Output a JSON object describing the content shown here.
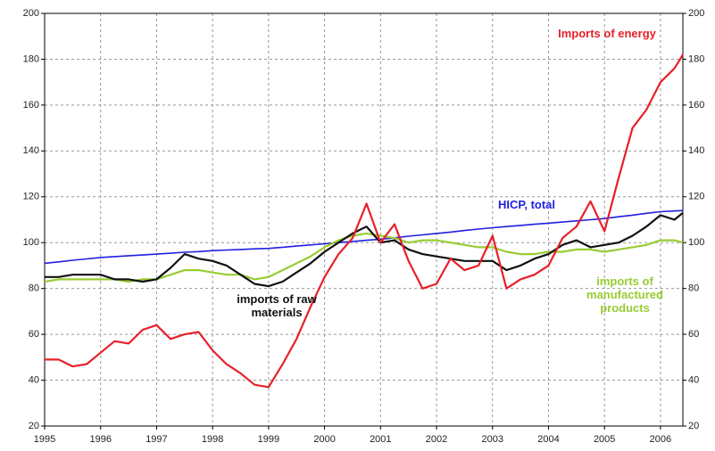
{
  "chart_data": {
    "type": "line",
    "x": [
      1995,
      1995.25,
      1995.5,
      1995.75,
      1996,
      1996.25,
      1996.5,
      1996.75,
      1997,
      1997.25,
      1997.5,
      1997.75,
      1998,
      1998.25,
      1998.5,
      1998.75,
      1999,
      1999.25,
      1999.5,
      1999.75,
      2000,
      2000.25,
      2000.5,
      2000.75,
      2001,
      2001.25,
      2001.5,
      2001.75,
      2002,
      2002.25,
      2002.5,
      2002.75,
      2003,
      2003.25,
      2003.5,
      2003.75,
      2004,
      2004.25,
      2004.5,
      2004.75,
      2005,
      2005.25,
      2005.5,
      2005.75,
      2006,
      2006.25,
      2006.4
    ],
    "series": [
      {
        "name": "Imports of energy",
        "color": "#e8202a",
        "values": [
          49,
          49,
          46,
          47,
          52,
          57,
          56,
          62,
          64,
          58,
          60,
          61,
          53,
          47,
          43,
          38,
          37,
          47,
          58,
          72,
          85,
          95,
          102,
          117,
          100,
          108,
          92,
          80,
          82,
          93,
          88,
          90,
          103,
          80,
          84,
          86,
          90,
          102,
          107,
          118,
          105,
          128,
          150,
          158,
          170,
          176,
          182
        ]
      },
      {
        "name": "HICP, total",
        "color": "#1f1fe0",
        "values": [
          91,
          91.6,
          92.3,
          92.9,
          93.5,
          93.9,
          94.3,
          94.6,
          95,
          95.4,
          95.8,
          96.1,
          96.5,
          96.8,
          97,
          97.3,
          97.5,
          98,
          98.5,
          99,
          99.5,
          100,
          100.5,
          101,
          101.5,
          102.1,
          102.8,
          103.4,
          104,
          104.6,
          105.3,
          105.9,
          106.5,
          107,
          107.5,
          108,
          108.5,
          109,
          109.5,
          110,
          110.5,
          111.3,
          112,
          112.8,
          113.5,
          113.8,
          114
        ]
      },
      {
        "name": "imports of raw materials",
        "color": "#111111",
        "values": [
          85,
          85,
          86,
          86,
          86,
          84,
          84,
          83,
          84,
          89,
          95,
          93,
          92,
          90,
          86,
          82,
          81,
          83,
          87,
          91,
          96,
          100,
          104,
          107,
          100,
          101,
          97,
          95,
          94,
          93,
          92,
          92,
          92,
          88,
          90,
          93,
          95,
          99,
          101,
          98,
          99,
          100,
          103,
          107,
          112,
          110,
          113
        ]
      },
      {
        "name": "imports of manufactured products",
        "color": "#99cc33",
        "values": [
          83,
          84,
          84,
          84,
          84,
          84,
          83,
          84,
          84,
          86,
          88,
          88,
          87,
          86,
          86,
          84,
          85,
          88,
          91,
          94,
          98,
          101,
          103,
          104,
          103,
          102,
          100,
          101,
          101,
          100,
          99,
          98,
          98,
          96,
          95,
          95,
          96,
          96,
          97,
          97,
          96,
          97,
          98,
          99,
          101,
          101,
          100
        ]
      }
    ],
    "xlim": [
      1995,
      2006.4
    ],
    "xticks": [
      1995,
      1996,
      1997,
      1998,
      1999,
      2000,
      2001,
      2002,
      2003,
      2004,
      2005,
      2006
    ],
    "ylim": [
      20,
      200
    ],
    "yticks": [
      20,
      40,
      60,
      80,
      100,
      120,
      140,
      160,
      180,
      200
    ],
    "y2lim": [
      20,
      200
    ],
    "y2ticks": [
      20,
      40,
      60,
      80,
      100,
      120,
      140,
      160,
      180,
      200
    ],
    "grid": true
  }
}
